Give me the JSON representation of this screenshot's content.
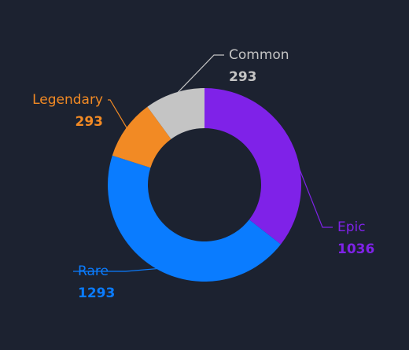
{
  "chart_data": {
    "type": "donut",
    "categories": [
      "Epic",
      "Rare",
      "Legendary",
      "Common"
    ],
    "values": [
      1036,
      1293,
      293,
      293
    ],
    "colors": [
      "#7f22e8",
      "#0a7cff",
      "#f28a24",
      "#c4c4c4"
    ]
  }
}
